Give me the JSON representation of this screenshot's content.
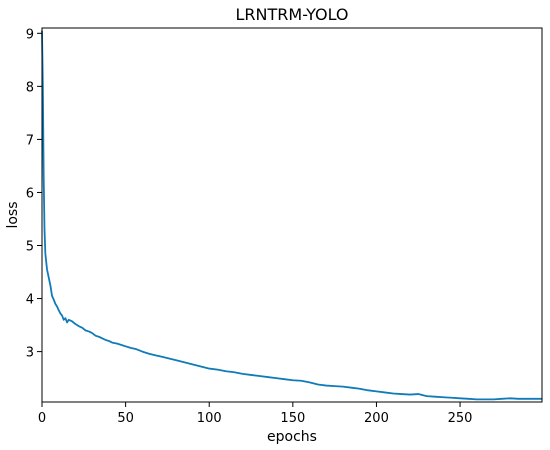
{
  "chart_data": {
    "type": "line",
    "title": "LRNTRM-YOLO",
    "xlabel": "epochs",
    "ylabel": "loss",
    "xlim": [
      0,
      299
    ],
    "ylim": [
      2.05,
      9.1
    ],
    "x_ticks": [
      0,
      50,
      100,
      150,
      200,
      250
    ],
    "y_ticks": [
      3,
      4,
      5,
      6,
      7,
      8,
      9
    ],
    "grid": false,
    "legend": "none",
    "series": [
      {
        "color": "#0f7bb8",
        "points": [
          [
            0,
            9.05
          ],
          [
            0.5,
            8.0
          ],
          [
            1,
            6.3
          ],
          [
            1.5,
            5.3
          ],
          [
            2,
            4.85
          ],
          [
            3,
            4.55
          ],
          [
            4,
            4.4
          ],
          [
            5,
            4.25
          ],
          [
            6,
            4.05
          ],
          [
            7,
            3.98
          ],
          [
            8,
            3.9
          ],
          [
            9,
            3.85
          ],
          [
            10,
            3.78
          ],
          [
            11,
            3.72
          ],
          [
            12,
            3.68
          ],
          [
            13,
            3.6
          ],
          [
            14,
            3.63
          ],
          [
            15,
            3.55
          ],
          [
            16,
            3.6
          ],
          [
            18,
            3.57
          ],
          [
            20,
            3.52
          ],
          [
            22,
            3.48
          ],
          [
            24,
            3.45
          ],
          [
            26,
            3.4
          ],
          [
            28,
            3.38
          ],
          [
            30,
            3.35
          ],
          [
            32,
            3.3
          ],
          [
            34,
            3.28
          ],
          [
            36,
            3.25
          ],
          [
            38,
            3.22
          ],
          [
            40,
            3.2
          ],
          [
            42,
            3.17
          ],
          [
            45,
            3.15
          ],
          [
            48,
            3.12
          ],
          [
            50,
            3.1
          ],
          [
            53,
            3.07
          ],
          [
            56,
            3.05
          ],
          [
            60,
            3.0
          ],
          [
            64,
            2.96
          ],
          [
            68,
            2.93
          ],
          [
            72,
            2.9
          ],
          [
            76,
            2.87
          ],
          [
            80,
            2.84
          ],
          [
            85,
            2.8
          ],
          [
            90,
            2.76
          ],
          [
            95,
            2.72
          ],
          [
            100,
            2.68
          ],
          [
            105,
            2.66
          ],
          [
            110,
            2.63
          ],
          [
            115,
            2.61
          ],
          [
            120,
            2.58
          ],
          [
            125,
            2.56
          ],
          [
            130,
            2.54
          ],
          [
            135,
            2.52
          ],
          [
            140,
            2.5
          ],
          [
            145,
            2.48
          ],
          [
            150,
            2.46
          ],
          [
            155,
            2.45
          ],
          [
            160,
            2.42
          ],
          [
            165,
            2.38
          ],
          [
            170,
            2.36
          ],
          [
            175,
            2.35
          ],
          [
            180,
            2.34
          ],
          [
            185,
            2.32
          ],
          [
            190,
            2.3
          ],
          [
            195,
            2.27
          ],
          [
            200,
            2.25
          ],
          [
            205,
            2.23
          ],
          [
            210,
            2.21
          ],
          [
            215,
            2.2
          ],
          [
            220,
            2.19
          ],
          [
            225,
            2.2
          ],
          [
            230,
            2.16
          ],
          [
            235,
            2.15
          ],
          [
            240,
            2.14
          ],
          [
            245,
            2.13
          ],
          [
            250,
            2.12
          ],
          [
            255,
            2.11
          ],
          [
            260,
            2.1
          ],
          [
            265,
            2.1
          ],
          [
            270,
            2.1
          ],
          [
            275,
            2.11
          ],
          [
            280,
            2.12
          ],
          [
            285,
            2.11
          ],
          [
            290,
            2.11
          ],
          [
            295,
            2.11
          ],
          [
            299,
            2.11
          ]
        ]
      }
    ]
  }
}
